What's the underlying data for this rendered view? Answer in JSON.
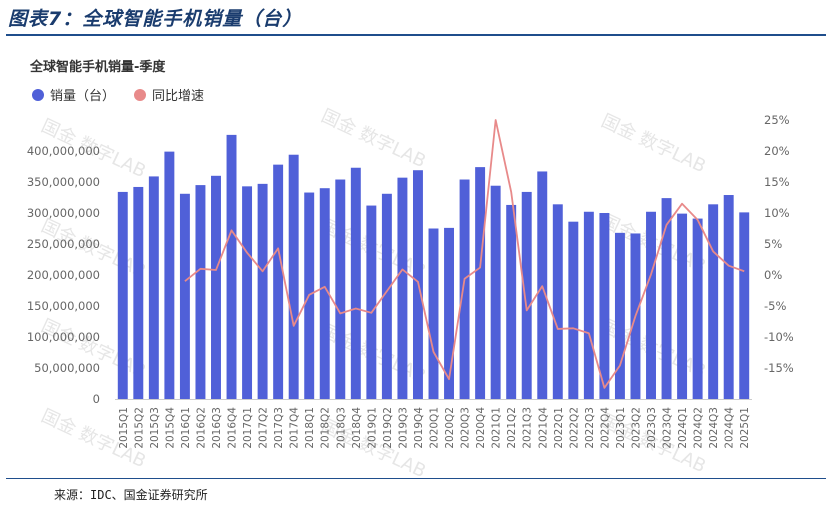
{
  "figure_title": "图表7：全球智能手机销量（台）",
  "source": "来源：IDC、国金证券研究所",
  "watermark": "国金 数字LAB",
  "colors": {
    "bar": "#5060d8",
    "line": "#e88a8a",
    "axis_text": "#666666",
    "title_text": "#333333",
    "header": "#1f4e8c"
  },
  "chart_data": {
    "type": "bar",
    "title": "全球智能手机销量-季度",
    "legend_position": "top-left",
    "categories": [
      "2015Q1",
      "2015Q2",
      "2015Q3",
      "2015Q4",
      "2016Q1",
      "2016Q2",
      "2016Q3",
      "2016Q4",
      "2017Q1",
      "2017Q2",
      "2017Q3",
      "2017Q4",
      "2018Q1",
      "2018Q2",
      "2018Q3",
      "2018Q4",
      "2019Q1",
      "2019Q2",
      "2019Q3",
      "2019Q4",
      "2020Q1",
      "2020Q2",
      "2020Q3",
      "2020Q4",
      "2021Q1",
      "2021Q2",
      "2021Q3",
      "2021Q4",
      "2022Q1",
      "2022Q2",
      "2022Q3",
      "2022Q4",
      "2023Q1",
      "2023Q2",
      "2023Q3",
      "2023Q4",
      "2024Q1",
      "2024Q2",
      "2024Q3",
      "2024Q4",
      "2025Q1"
    ],
    "series": [
      {
        "name": "销量（台）",
        "type": "bar",
        "axis": "left",
        "values": [
          334000000,
          342000000,
          359000000,
          399000000,
          331000000,
          345000000,
          360000000,
          426000000,
          343000000,
          347000000,
          378000000,
          394000000,
          333000000,
          340000000,
          354000000,
          373000000,
          312000000,
          331000000,
          357000000,
          369000000,
          275000000,
          276000000,
          354000000,
          374000000,
          344000000,
          313000000,
          334000000,
          367000000,
          314000000,
          286000000,
          302000000,
          300000000,
          268000000,
          267000000,
          302000000,
          324000000,
          299000000,
          291000000,
          314000000,
          329000000,
          301000000
        ]
      },
      {
        "name": "同比增速",
        "type": "line",
        "axis": "right",
        "values": [
          null,
          null,
          null,
          null,
          -1.0,
          1.0,
          0.8,
          7.2,
          3.6,
          0.6,
          4.3,
          -8.2,
          -3.2,
          -1.9,
          -6.2,
          -5.4,
          -6.1,
          -2.6,
          0.9,
          -1.1,
          -12.4,
          -16.8,
          -0.6,
          1.2,
          25.0,
          13.4,
          -5.7,
          -1.8,
          -8.7,
          -8.6,
          -9.4,
          -18.2,
          -14.6,
          -6.6,
          0.1,
          8.1,
          11.5,
          8.9,
          3.8,
          1.5,
          0.6
        ]
      }
    ],
    "y_left": {
      "min": 0,
      "max": 450000000,
      "ticks": [
        "0",
        "50,000,000",
        "100,000,000",
        "150,000,000",
        "200,000,000",
        "250,000,000",
        "300,000,000",
        "350,000,000",
        "400,000,000"
      ]
    },
    "y_right": {
      "min": -20,
      "max": 25,
      "ticks": [
        "-15%",
        "-10%",
        "-5%",
        "0%",
        "5%",
        "10%",
        "15%",
        "20%",
        "25%"
      ]
    }
  }
}
